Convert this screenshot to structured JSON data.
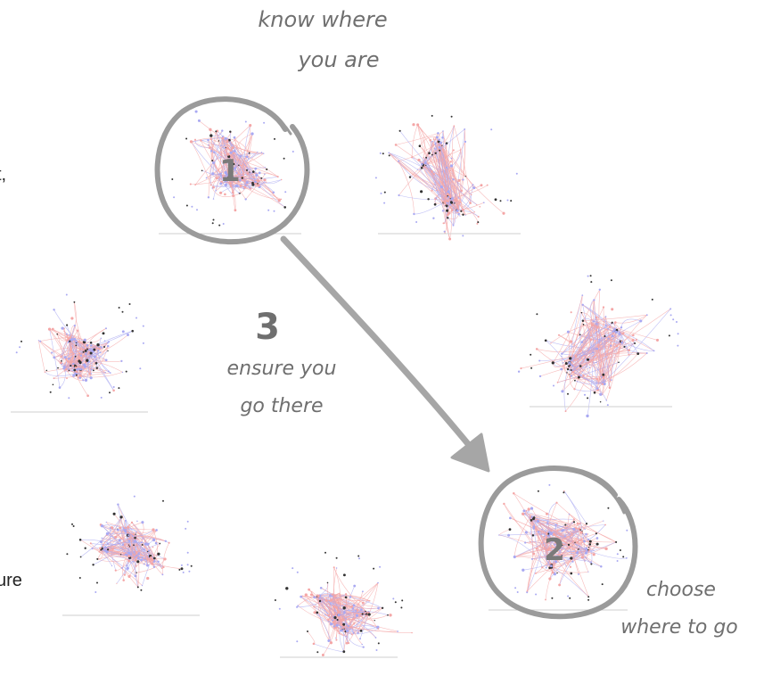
{
  "labels": {
    "know": [
      "know where",
      "you are"
    ],
    "step1": "1",
    "step2": "2",
    "step3": "3",
    "ensure": [
      "ensure you",
      "go there"
    ],
    "choose": [
      "choose",
      "where to go"
    ]
  },
  "edge_text": {
    "left_top": "t,",
    "left_bottom": "ure"
  },
  "colors": {
    "ring": "#9b9b9b",
    "arrow": "#a6a6a6",
    "edge_red": "#f4a6a6",
    "edge_blue": "#a9a9f2",
    "node_dark": "#333333",
    "baseline": "#cfcfcf",
    "label": "#6f6f6f"
  },
  "networks": [
    {
      "id": "net-1",
      "seed": 11,
      "spread": 1.0
    },
    {
      "id": "net-2",
      "seed": 23,
      "spread": 1.1
    },
    {
      "id": "net-3",
      "seed": 37,
      "spread": 1.0
    },
    {
      "id": "net-4",
      "seed": 41,
      "spread": 1.2
    },
    {
      "id": "net-5",
      "seed": 53,
      "spread": 1.0
    },
    {
      "id": "net-6",
      "seed": 67,
      "spread": 1.0
    },
    {
      "id": "net-7",
      "seed": 79,
      "spread": 1.1
    }
  ]
}
